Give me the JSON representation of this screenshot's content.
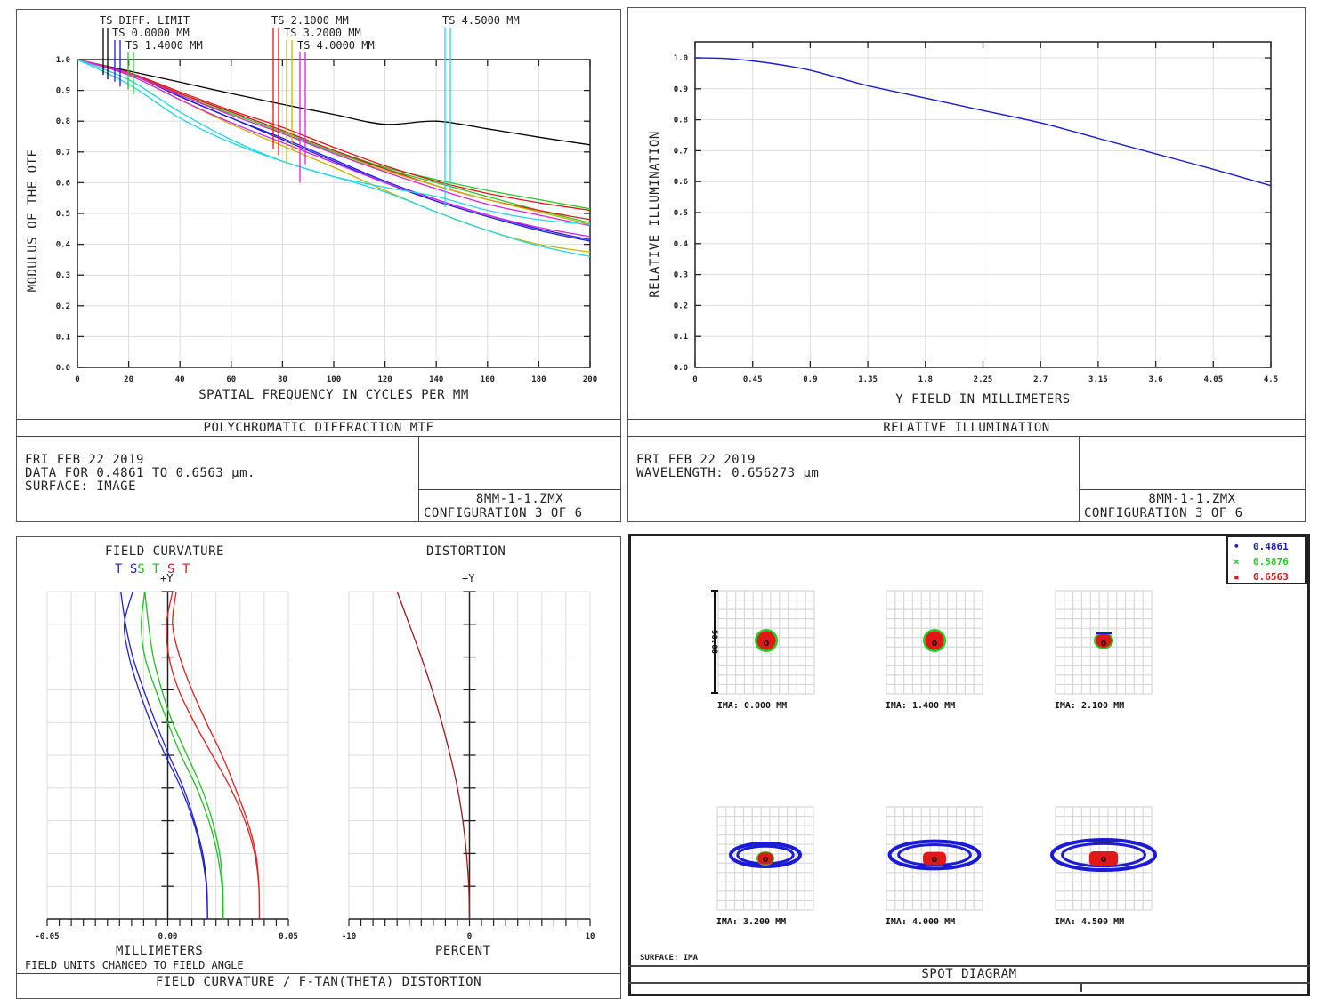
{
  "mtf_panel": {
    "title": "POLYCHROMATIC DIFFRACTION MTF",
    "date": "FRI FEB 22 2019",
    "data_line": "DATA FOR 0.4861 TO 0.6563 µm.",
    "surface_line": "SURFACE: IMAGE",
    "file": "8MM-1-1.ZMX",
    "config": "CONFIGURATION 3 OF 6"
  },
  "ri_panel": {
    "title": "RELATIVE ILLUMINATION",
    "date": "FRI FEB 22 2019",
    "wavelength_line": "WAVELENGTH: 0.656273 µm",
    "file": "8MM-1-1.ZMX",
    "config": "CONFIGURATION 3 OF 6"
  },
  "fc_panel": {
    "title": "FIELD CURVATURE / F-TAN(THETA) DISTORTION",
    "fc_title": "FIELD CURVATURE",
    "dist_title": "DISTORTION",
    "fc_xlabel": "MILLIMETERS",
    "dist_xlabel": "PERCENT",
    "note": "FIELD UNITS CHANGED TO FIELD ANGLE",
    "y_axis_label": "+Y",
    "legend_letters": [
      {
        "text": "T",
        "color": "#2020d0"
      },
      {
        "text": "S",
        "color": "#2020d0"
      },
      {
        "text": "S",
        "color": "#20c020"
      },
      {
        "text": "T",
        "color": "#20c020"
      },
      {
        "text": "S",
        "color": "#e02020"
      },
      {
        "text": "T",
        "color": "#e02020"
      }
    ]
  },
  "spot_panel": {
    "title": "SPOT DIAGRAM",
    "surface_label": "SURFACE: IMA",
    "scale_label": "50.00",
    "legend": [
      {
        "marker": "•",
        "label": "0.4861",
        "color": "#1a1ad8"
      },
      {
        "marker": "×",
        "label": "0.5876",
        "color": "#22d022"
      },
      {
        "marker": "▪",
        "label": "0.6563",
        "color": "#e01818"
      }
    ],
    "fields": [
      {
        "label": "IMA: 0.000 MM",
        "size": 0.22
      },
      {
        "label": "IMA: 1.400 MM",
        "size": 0.22
      },
      {
        "label": "IMA: 2.100 MM",
        "size": 0.2
      },
      {
        "label": "IMA: 3.200 MM",
        "size": 0.5
      },
      {
        "label": "IMA: 4.000 MM",
        "size": 0.8
      },
      {
        "label": "IMA: 4.500 MM",
        "size": 1.0
      }
    ]
  },
  "chart_data": [
    {
      "type": "line",
      "title": "POLYCHROMATIC DIFFRACTION MTF",
      "xlabel": "SPATIAL FREQUENCY IN CYCLES PER MM",
      "ylabel": "MODULUS OF THE OTF",
      "xlim": [
        0,
        200
      ],
      "ylim": [
        0,
        1
      ],
      "xticks": [
        "0",
        "20",
        "40",
        "60",
        "80",
        "100",
        "120",
        "140",
        "160",
        "180",
        "200"
      ],
      "yticks": [
        "0.0",
        "0.1",
        "0.2",
        "0.3",
        "0.4",
        "0.5",
        "0.6",
        "0.7",
        "0.8",
        "0.9",
        "1.0"
      ],
      "grid": true,
      "legend_position": "top",
      "x": [
        0,
        20,
        40,
        60,
        80,
        100,
        120,
        140,
        160,
        180,
        200
      ],
      "series": [
        {
          "name": "TS DIFF. LIMIT",
          "color": "#000000",
          "values": [
            1.0,
            0.963,
            0.927,
            0.89,
            0.855,
            0.822,
            0.79,
            0.8,
            0.775,
            0.748,
            0.723
          ]
        },
        {
          "name": "TS 0.0000 MM T",
          "color": "#1a1ae0",
          "values": [
            1.0,
            0.955,
            0.88,
            0.81,
            0.74,
            0.67,
            0.6,
            0.54,
            0.49,
            0.445,
            0.41
          ]
        },
        {
          "name": "TS 0.0000 MM S",
          "color": "#1a1ae0",
          "values": [
            1.0,
            0.955,
            0.88,
            0.81,
            0.745,
            0.675,
            0.605,
            0.545,
            0.495,
            0.45,
            0.415
          ]
        },
        {
          "name": "TS 1.4000 MM T",
          "color": "#22cc22",
          "values": [
            1.0,
            0.955,
            0.89,
            0.83,
            0.77,
            0.705,
            0.65,
            0.61,
            0.575,
            0.545,
            0.515
          ]
        },
        {
          "name": "TS 1.4000 MM S",
          "color": "#22cc22",
          "values": [
            1.0,
            0.955,
            0.885,
            0.825,
            0.765,
            0.7,
            0.645,
            0.6,
            0.555,
            0.51,
            0.47
          ]
        },
        {
          "name": "TS 2.1000 MM T",
          "color": "#e01818",
          "values": [
            1.0,
            0.958,
            0.895,
            0.835,
            0.78,
            0.715,
            0.655,
            0.605,
            0.565,
            0.535,
            0.51
          ]
        },
        {
          "name": "TS 2.1000 MM S",
          "color": "#e01818",
          "values": [
            1.0,
            0.956,
            0.89,
            0.83,
            0.77,
            0.705,
            0.645,
            0.59,
            0.545,
            0.51,
            0.48
          ]
        },
        {
          "name": "TS 3.2000 MM T",
          "color": "#c8b400",
          "values": [
            1.0,
            0.955,
            0.885,
            0.82,
            0.76,
            0.695,
            0.64,
            0.59,
            0.545,
            0.505,
            0.465
          ]
        },
        {
          "name": "TS 3.2000 MM S",
          "color": "#c8b400",
          "values": [
            1.0,
            0.95,
            0.87,
            0.79,
            0.72,
            0.65,
            0.575,
            0.505,
            0.445,
            0.4,
            0.375
          ]
        },
        {
          "name": "TS 4.0000 MM T",
          "color": "#e020e0",
          "values": [
            1.0,
            0.95,
            0.87,
            0.795,
            0.73,
            0.665,
            0.6,
            0.545,
            0.495,
            0.455,
            0.425
          ]
        },
        {
          "name": "TS 4.0000 MM S",
          "color": "#e020e0",
          "values": [
            1.0,
            0.955,
            0.885,
            0.82,
            0.76,
            0.695,
            0.635,
            0.58,
            0.53,
            0.495,
            0.46
          ]
        },
        {
          "name": "TS 4.5000 MM T",
          "color": "#20d8e8",
          "values": [
            1.0,
            0.92,
            0.81,
            0.73,
            0.67,
            0.62,
            0.585,
            0.555,
            0.51,
            0.48,
            0.465
          ]
        },
        {
          "name": "TS 4.5000 MM S",
          "color": "#20d8e8",
          "values": [
            1.0,
            0.935,
            0.83,
            0.74,
            0.67,
            0.62,
            0.57,
            0.505,
            0.445,
            0.395,
            0.36
          ]
        }
      ],
      "legend": [
        "TS DIFF. LIMIT",
        "TS 0.0000 MM",
        "TS 1.4000 MM",
        "TS 2.1000 MM",
        "TS 3.2000 MM",
        "TS 4.0000 MM",
        "TS 4.5000 MM"
      ],
      "legend_colors": [
        "#000000",
        "#1a1ae0",
        "#22cc22",
        "#e01818",
        "#c8b400",
        "#e020e0",
        "#20d8e8"
      ]
    },
    {
      "type": "line",
      "title": "RELATIVE ILLUMINATION",
      "xlabel": "Y FIELD IN MILLIMETERS",
      "ylabel": "RELATIVE ILLUMINATION",
      "xlim": [
        0,
        4.5
      ],
      "ylim": [
        0,
        1
      ],
      "xticks": [
        "0",
        "0.45",
        "0.9",
        "1.35",
        "1.8",
        "2.25",
        "2.7",
        "3.15",
        "3.6",
        "4.05",
        "4.5"
      ],
      "yticks": [
        "0.0",
        "0.1",
        "0.2",
        "0.3",
        "0.4",
        "0.5",
        "0.6",
        "0.7",
        "0.8",
        "0.9",
        "1.0"
      ],
      "grid": true,
      "x": [
        0,
        0.225,
        0.45,
        0.675,
        0.9,
        1.125,
        1.35,
        1.8,
        2.25,
        2.7,
        3.15,
        3.6,
        4.05,
        4.5
      ],
      "series": [
        {
          "name": "Relative Illumination",
          "color": "#1a1ad8",
          "values": [
            1.0,
            0.998,
            0.99,
            0.977,
            0.96,
            0.935,
            0.91,
            0.87,
            0.83,
            0.79,
            0.74,
            0.69,
            0.64,
            0.587
          ]
        }
      ]
    },
    {
      "type": "line",
      "title": "FIELD CURVATURE",
      "xlabel": "MILLIMETERS",
      "xlim": [
        -0.05,
        0.05
      ],
      "xticks": [
        "-0.05",
        "0.00",
        "0.05"
      ],
      "ylabel": "+Y",
      "ylim": [
        0,
        1
      ],
      "y": [
        0,
        0.1,
        0.2,
        0.3,
        0.4,
        0.5,
        0.6,
        0.7,
        0.8,
        0.9,
        1.0
      ],
      "series": [
        {
          "name": "T 0.4861",
          "color": "#2020d0",
          "values": [
            0.0165,
            0.016,
            0.014,
            0.0105,
            0.0055,
            -0.001,
            -0.007,
            -0.012,
            -0.016,
            -0.018,
            -0.0145
          ]
        },
        {
          "name": "S 0.4861",
          "color": "#2020d0",
          "values": [
            0.0165,
            0.0162,
            0.0145,
            0.011,
            0.0065,
            0.0005,
            -0.005,
            -0.01,
            -0.0145,
            -0.0175,
            -0.0195
          ]
        },
        {
          "name": "S 0.5876",
          "color": "#20c020",
          "values": [
            0.023,
            0.0225,
            0.0205,
            0.017,
            0.012,
            0.0055,
            0.0,
            -0.005,
            -0.0095,
            -0.011,
            -0.0095
          ]
        },
        {
          "name": "T 0.5876",
          "color": "#20c020",
          "values": [
            0.023,
            0.0228,
            0.0215,
            0.0185,
            0.014,
            0.008,
            0.002,
            -0.0025,
            -0.006,
            -0.008,
            -0.0095
          ]
        },
        {
          "name": "S 0.6563",
          "color": "#e02020",
          "values": [
            0.038,
            0.0378,
            0.036,
            0.032,
            0.026,
            0.0185,
            0.011,
            0.0045,
            0.0005,
            -0.0005,
            0.002
          ]
        },
        {
          "name": "T 0.6563",
          "color": "#e02020",
          "values": [
            0.038,
            0.0378,
            0.0365,
            0.033,
            0.028,
            0.0225,
            0.016,
            0.01,
            0.005,
            0.002,
            0.0035
          ]
        }
      ]
    },
    {
      "type": "line",
      "title": "DISTORTION",
      "xlabel": "PERCENT",
      "xlim": [
        -10,
        10
      ],
      "xticks": [
        "-10",
        "0",
        "10"
      ],
      "ylabel": "+Y",
      "ylim": [
        0,
        1
      ],
      "y": [
        0,
        0.1,
        0.2,
        0.3,
        0.4,
        0.5,
        0.6,
        0.7,
        0.8,
        0.9,
        1.0
      ],
      "series": [
        {
          "name": "F-Tan(Theta) Distortion",
          "color": "#a01818",
          "values": [
            0,
            -0.06,
            -0.25,
            -0.55,
            -1.0,
            -1.6,
            -2.3,
            -3.1,
            -4.0,
            -5.0,
            -6.0
          ]
        }
      ]
    }
  ]
}
